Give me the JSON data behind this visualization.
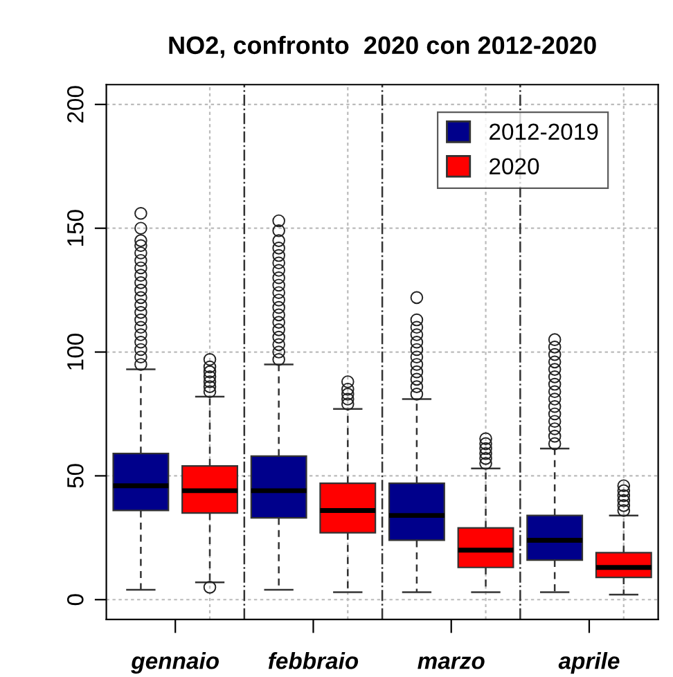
{
  "chart_data": {
    "type": "box",
    "title": "NO2, confronto  2020 con 2012-2020",
    "categories": [
      "gennaio",
      "febbraio",
      "marzo",
      "aprile"
    ],
    "series": [
      {
        "name": "2012-2019",
        "color": "#00008b",
        "boxes": [
          {
            "low": 4,
            "q1": 36,
            "median": 46,
            "q3": 59,
            "high": 93,
            "outliers": [
              95,
              98,
              101,
              104,
              107,
              110,
              113,
              116,
              119,
              122,
              125,
              128,
              131,
              134,
              137,
              140,
              143,
              145,
              150,
              156
            ]
          },
          {
            "low": 4,
            "q1": 33,
            "median": 44,
            "q3": 58,
            "high": 95,
            "outliers": [
              97,
              100,
              103,
              106,
              109,
              112,
              115,
              118,
              121,
              124,
              127,
              130,
              133,
              136,
              139,
              142,
              145,
              149,
              153
            ]
          },
          {
            "low": 3,
            "q1": 24,
            "median": 34,
            "q3": 47,
            "high": 81,
            "outliers": [
              83,
              86,
              89,
              92,
              95,
              98,
              101,
              104,
              107,
              110,
              113,
              122
            ]
          },
          {
            "low": 3,
            "q1": 16,
            "median": 24,
            "q3": 34,
            "high": 61,
            "outliers": [
              63,
              66,
              69,
              72,
              75,
              78,
              81,
              84,
              87,
              90,
              93,
              96,
              99,
              102,
              105
            ]
          }
        ]
      },
      {
        "name": "2020",
        "color": "#ff0000",
        "boxes": [
          {
            "low": 7,
            "q1": 35,
            "median": 44,
            "q3": 54,
            "high": 82,
            "outliers": [
              5,
              84,
              86,
              88,
              90,
              92,
              94,
              97
            ]
          },
          {
            "low": 3,
            "q1": 27,
            "median": 36,
            "q3": 47,
            "high": 77,
            "outliers": [
              79,
              81,
              83,
              85,
              88
            ]
          },
          {
            "low": 3,
            "q1": 13,
            "median": 20,
            "q3": 29,
            "high": 53,
            "outliers": [
              55,
              57,
              59,
              61,
              63,
              65
            ]
          },
          {
            "low": 2,
            "q1": 9,
            "median": 13,
            "q3": 19,
            "high": 34,
            "outliers": [
              36,
              38,
              40,
              42,
              44,
              46
            ]
          }
        ]
      }
    ],
    "ylim": [
      -8,
      208
    ],
    "yticks": [
      0,
      50,
      100,
      150,
      200
    ],
    "grid": true,
    "legend": "top right"
  }
}
